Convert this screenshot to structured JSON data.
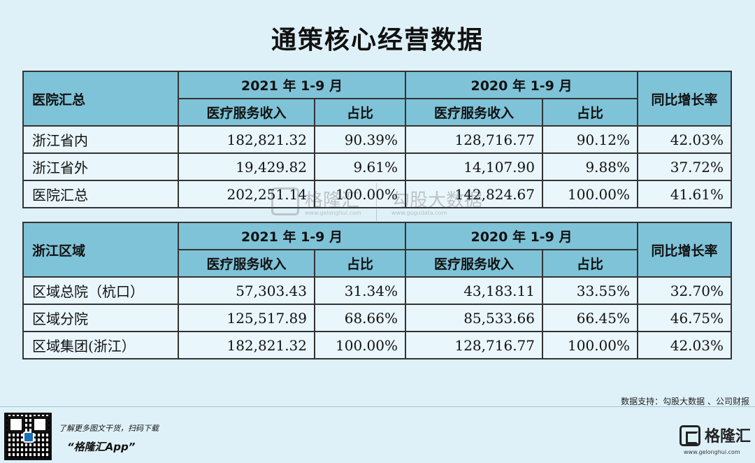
{
  "title": "通策核心经营数据",
  "table1": {
    "section_label": "医院汇总",
    "period_2021": "2021 年 1-9 月",
    "period_2020": "2020 年 1-9 月",
    "growth_header": "同比增长率",
    "revenue_header": "医疗服务收入",
    "share_header": "占比",
    "rows": [
      {
        "label": "浙江省内",
        "rev2021": "182,821.32",
        "share2021": "90.39%",
        "rev2020": "128,716.77",
        "share2020": "90.12%",
        "growth": "42.03%"
      },
      {
        "label": "浙江省外",
        "rev2021": "19,429.82",
        "share2021": "9.61%",
        "rev2020": "14,107.90",
        "share2020": "9.88%",
        "growth": "37.72%"
      },
      {
        "label": "医院汇总",
        "rev2021": "202,251.14",
        "share2021": "100.00%",
        "rev2020": "142,824.67",
        "share2020": "100.00%",
        "growth": "41.61%"
      }
    ]
  },
  "table2": {
    "section_label": "浙江区域",
    "period_2021": "2021 年 1-9 月",
    "period_2020": "2020 年 1-9 月",
    "growth_header": "同比增长率",
    "revenue_header": "医疗服务收入",
    "share_header": "占比",
    "rows": [
      {
        "label": "区域总院（杭口）",
        "rev2021": "57,303.43",
        "share2021": "31.34%",
        "rev2020": "43,183.11",
        "share2020": "33.55%",
        "growth": "32.70%"
      },
      {
        "label": "区域分院",
        "rev2021": "125,517.89",
        "share2021": "68.66%",
        "rev2020": "85,533.66",
        "share2020": "66.45%",
        "growth": "46.75%"
      },
      {
        "label": "区域集团(浙江）",
        "rev2021": "182,821.32",
        "share2021": "100.00%",
        "rev2020": "128,716.77",
        "share2020": "100.00%",
        "growth": "42.03%"
      }
    ]
  },
  "watermark": {
    "name1": "格隆汇",
    "url1": "www.gelonghui.com",
    "name2": "勾股大数据",
    "url2": "www.gogudata.com"
  },
  "source": "数据支持：勾股大数据 、公司财报",
  "footer": {
    "promo_line1": "了解更多图文干货，扫码下载",
    "promo_line2": "“格隆汇App”",
    "brand_name": "格隆汇",
    "brand_url": "www.gelonghui.com",
    "qr_icon": "qr-code-icon",
    "logo_icon": "gelonghui-logo-icon"
  },
  "colors": {
    "background": "#dff1f8",
    "header_fill": "#7fc3d8",
    "border": "#333333"
  }
}
